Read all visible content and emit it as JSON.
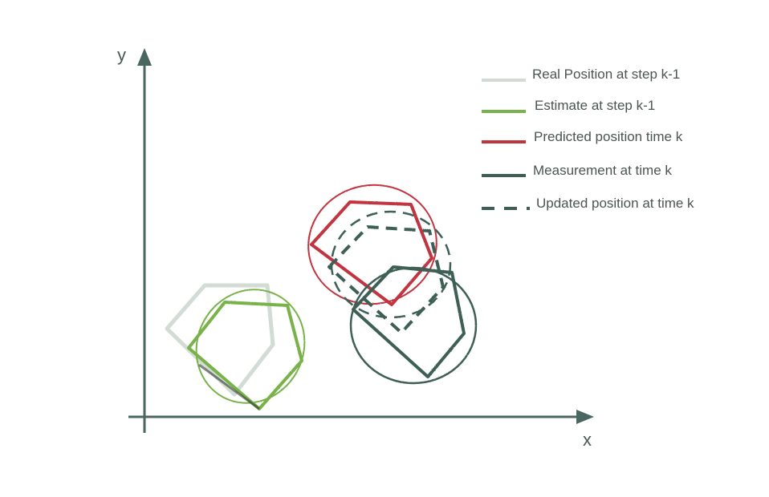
{
  "axes": {
    "x_label": "x",
    "y_label": "y",
    "color": "#4a6660"
  },
  "legend": {
    "items": [
      {
        "label": "Real Position at step k-1",
        "color": "#d3dbd5",
        "dashed": false
      },
      {
        "label": "Estimate at step k-1",
        "color": "#78b24a",
        "dashed": false
      },
      {
        "label": "Predicted position time k",
        "color": "#c0343f",
        "dashed": false
      },
      {
        "label": "Measurement at time k",
        "color": "#3e5e55",
        "dashed": false
      },
      {
        "label": "Updated position at time k",
        "color": "#3e5e55",
        "dashed": true
      }
    ]
  }
}
